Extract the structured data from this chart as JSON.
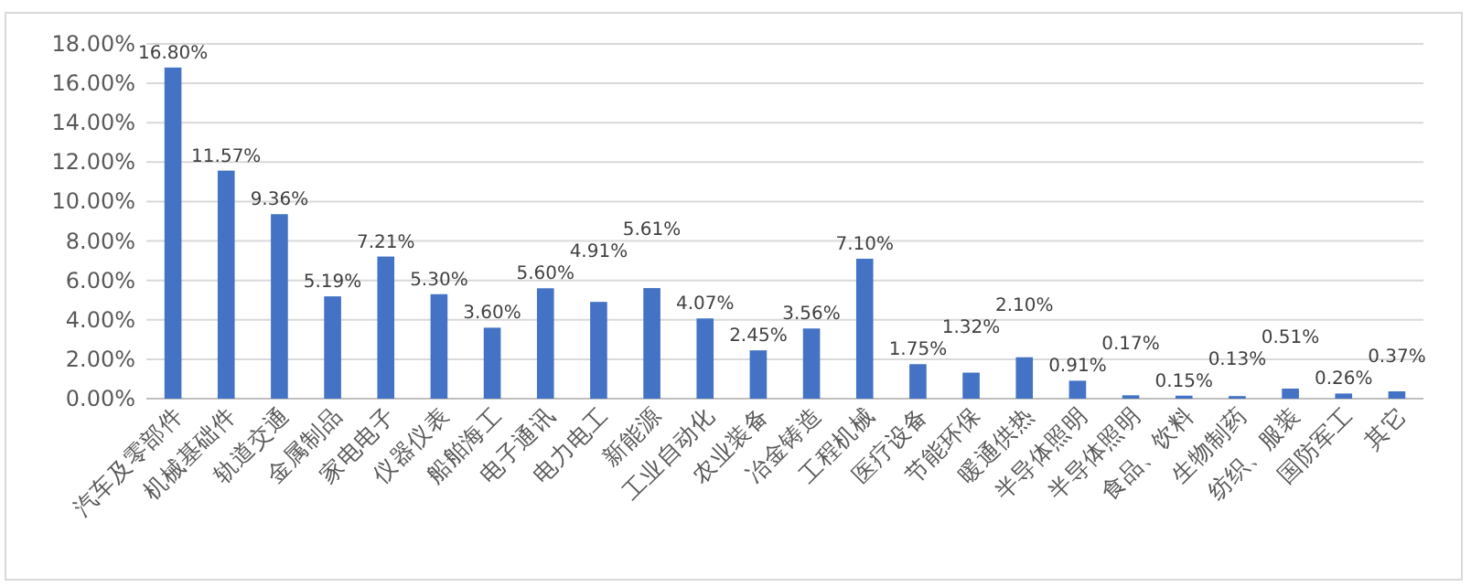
{
  "chart_data": {
    "type": "bar",
    "categories": [
      "汽车及零部件",
      "机械基础件",
      "轨道交通",
      "金属制品",
      "家电电子",
      "仪器仪表",
      "船舶海工",
      "电子通讯",
      "电力电工",
      "新能源",
      "工业自动化",
      "农业装备",
      "冶金铸造",
      "工程机械",
      "医疗设备",
      "节能环保",
      "暖通供热",
      "半导体照明",
      "半导体照明",
      "食品、饮料",
      "生物制药",
      "纺织、服装",
      "国防军工",
      "其它"
    ],
    "values": [
      16.8,
      11.57,
      9.36,
      5.19,
      7.21,
      5.3,
      3.6,
      5.6,
      4.91,
      5.61,
      4.07,
      2.45,
      3.56,
      7.1,
      1.75,
      1.32,
      2.1,
      0.91,
      0.17,
      0.15,
      0.13,
      0.51,
      0.26,
      0.37
    ],
    "value_labels": [
      "16.80%",
      "11.57%",
      "9.36%",
      "5.19%",
      "7.21%",
      "5.30%",
      "3.60%",
      "5.60%",
      "4.91%",
      "5.61%",
      "4.07%",
      "2.45%",
      "3.56%",
      "7.10%",
      "1.75%",
      "1.32%",
      "2.10%",
      "0.91%",
      "0.17%",
      "0.15%",
      "0.13%",
      "0.51%",
      "0.26%",
      "0.37%"
    ],
    "color": "#4472c4",
    "ylim": [
      0,
      18
    ],
    "yticks": [
      {
        "value": 0,
        "label": "0.00%"
      },
      {
        "value": 2,
        "label": "2.00%"
      },
      {
        "value": 4,
        "label": "4.00%"
      },
      {
        "value": 6,
        "label": "6.00%"
      },
      {
        "value": 8,
        "label": "8.00%"
      },
      {
        "value": 10,
        "label": "10.00%"
      },
      {
        "value": 12,
        "label": "12.00%"
      },
      {
        "value": 14,
        "label": "14.00%"
      },
      {
        "value": 16,
        "label": "16.00%"
      },
      {
        "value": 18,
        "label": "18.00%"
      }
    ],
    "grid": "y"
  }
}
